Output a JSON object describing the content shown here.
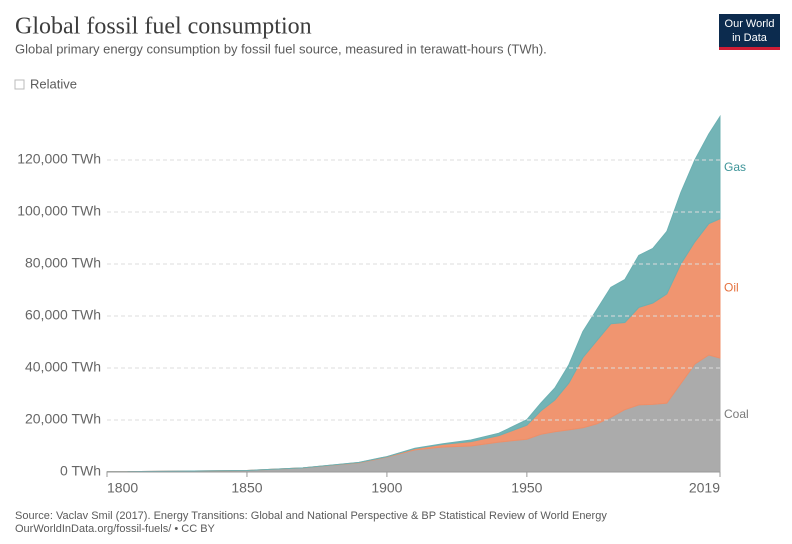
{
  "chart_data": {
    "type": "stacked-area",
    "title": "Global fossil fuel consumption",
    "subtitle": "Global primary energy consumption by fossil fuel source, measured in terawatt-hours (TWh).",
    "relative_toggle": "Relative",
    "logo": [
      "Our World",
      "in Data"
    ],
    "source": "Source: Vaclav Smil (2017). Energy Transitions: Global and National Perspective & BP Statistical Review of World Energy",
    "url": "OurWorldInData.org/fossil-fuels/ • CC BY",
    "x": [
      1800,
      1850,
      1870,
      1890,
      1900,
      1910,
      1920,
      1930,
      1940,
      1950,
      1955,
      1960,
      1965,
      1970,
      1975,
      1980,
      1985,
      1990,
      1995,
      2000,
      2005,
      2010,
      2015,
      2019
    ],
    "series": [
      {
        "name": "Coal",
        "color": "#a7a7a7",
        "label_color": "#7a7a7a",
        "values": [
          97,
          570,
          1600,
          3500,
          5700,
          8500,
          9600,
          10000,
          11500,
          12600,
          14500,
          15500,
          16200,
          17000,
          18500,
          21000,
          24000,
          25800,
          26000,
          26500,
          34000,
          41500,
          45000,
          43800
        ]
      },
      {
        "name": "Oil",
        "color": "#ef8f68",
        "label_color": "#e5723f",
        "values": [
          0,
          0,
          10,
          150,
          180,
          500,
          1000,
          1700,
          2500,
          5400,
          9000,
          12200,
          18000,
          27000,
          32000,
          36000,
          33500,
          37500,
          39000,
          42000,
          46000,
          47000,
          50500,
          53600
        ]
      },
      {
        "name": "Gas",
        "color": "#6cb0b2",
        "label_color": "#3d9498",
        "values": [
          0,
          0,
          0,
          60,
          60,
          150,
          250,
          600,
          900,
          2100,
          3000,
          4600,
          7000,
          10000,
          12000,
          14000,
          16500,
          20000,
          21000,
          24000,
          27500,
          31500,
          34500,
          39300
        ]
      }
    ],
    "xlim": [
      1800,
      2019
    ],
    "xticks": [
      1800,
      1850,
      1900,
      1950,
      2019
    ],
    "ylim": [
      0,
      140000
    ],
    "yticks": [
      {
        "value": 0,
        "label": "0 TWh"
      },
      {
        "value": 20000,
        "label": "20,000 TWh"
      },
      {
        "value": 40000,
        "label": "40,000 TWh"
      },
      {
        "value": 60000,
        "label": "60,000 TWh"
      },
      {
        "value": 80000,
        "label": "80,000 TWh"
      },
      {
        "value": 100000,
        "label": "100,000 TWh"
      },
      {
        "value": 120000,
        "label": "120,000 TWh"
      }
    ],
    "grid": true
  }
}
